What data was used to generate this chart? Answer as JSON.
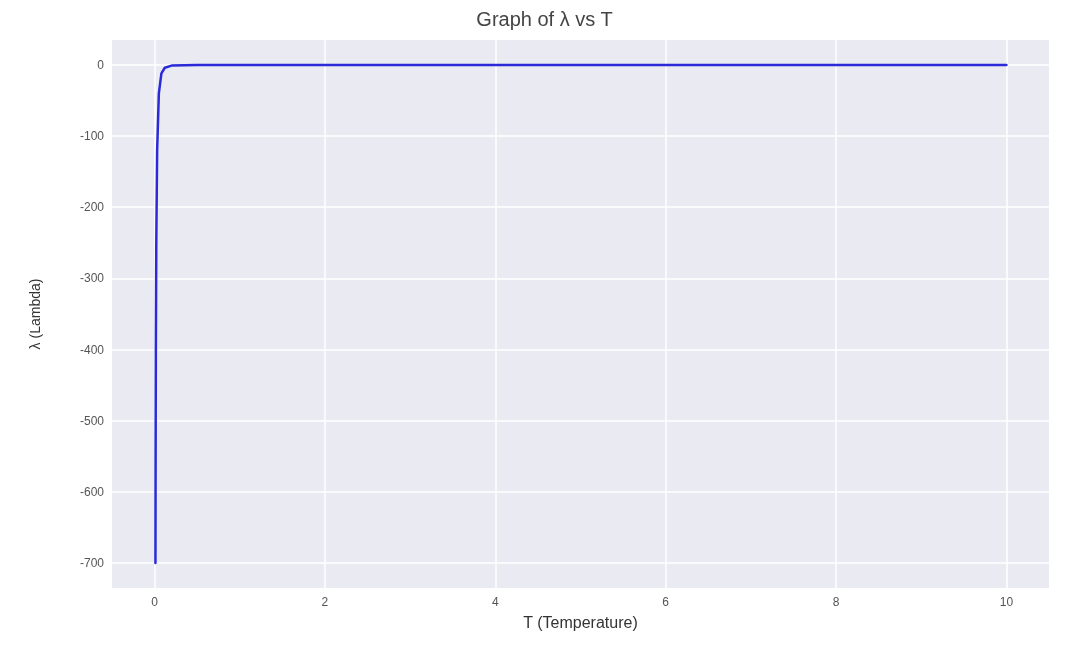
{
  "chart_data": {
    "type": "line",
    "title": "Graph of λ vs T",
    "xlabel": "T (Temperature)",
    "ylabel": "λ (Lambda)",
    "x": [
      0.01,
      0.012,
      0.015,
      0.02,
      0.03,
      0.05,
      0.08,
      0.12,
      0.2,
      0.5,
      10
    ],
    "series": [
      {
        "color": "#2a2ad8",
        "values": [
          -700,
          -550,
          -400,
          -250,
          -120,
          -40,
          -12,
          -4,
          -1,
          0,
          0
        ]
      }
    ],
    "xlim": [
      -0.5,
      10.5
    ],
    "xticks": [
      0,
      2,
      4,
      6,
      8,
      10
    ],
    "ylim": [
      -735,
      35
    ],
    "yticks": [
      -700,
      -600,
      -500,
      -400,
      -300,
      -200,
      -100,
      0
    ],
    "grid": true,
    "marker": "none",
    "line_style": "solid"
  }
}
